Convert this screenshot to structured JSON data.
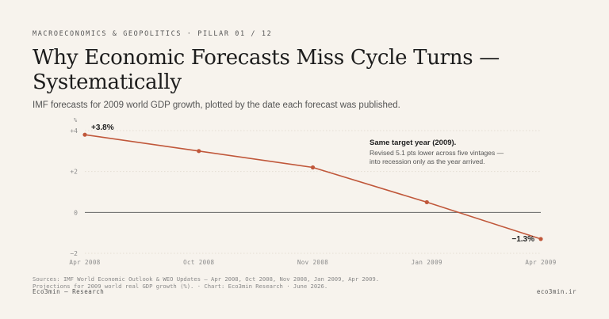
{
  "header": {
    "kicker": "MACROECONOMICS & GEOPOLITICS  ·  PILLAR 01 / 12",
    "title": "Why Economic Forecasts Miss Cycle Turns — Systematically",
    "subtitle": "IMF forecasts for 2009 world GDP growth, plotted by the date each forecast was published."
  },
  "chart_data": {
    "type": "line",
    "x": [
      "Apr 2008",
      "Oct 2008",
      "Nov 2008",
      "Jan 2009",
      "Apr 2009"
    ],
    "series": [
      {
        "values": [
          3.8,
          3.0,
          2.2,
          0.5,
          -1.3
        ]
      }
    ],
    "ylabel": "%",
    "ylim": [
      -2,
      4
    ],
    "yticks": [
      "+4",
      "+2",
      "0",
      "−2"
    ],
    "zero_line": true,
    "grid": true,
    "data_labels": [
      {
        "index": 0,
        "text": "+3.8%"
      },
      {
        "index": 4,
        "text": "−1.3%"
      }
    ],
    "annotation": {
      "title": "Same target year (2009).",
      "lines": [
        "Revised 5.1 pts lower across five vintages —",
        "into recession only as the year arrived."
      ]
    },
    "colors": {
      "line": "#c0573a",
      "zero": "#666666",
      "grid": "#e4ddd2",
      "tick": "#8a8a8a"
    }
  },
  "footer": {
    "sources_line1": "Sources: IMF World Economic Outlook & WEO Updates — Apr 2008, Oct 2008, Nov 2008, Jan 2009, Apr 2009.",
    "sources_line2": "Projections for 2009 world real GDP growth (%).  ·  Chart: Eco3min Research · June 2026.",
    "left": "Eco3min — Research",
    "right": "eco3min.ir"
  }
}
